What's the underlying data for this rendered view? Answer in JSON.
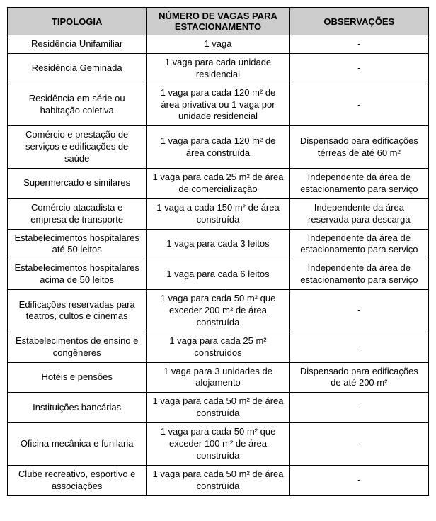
{
  "table": {
    "columns": [
      "TIPOLOGIA",
      "NÚMERO DE VAGAS PARA ESTACIONAMENTO",
      "OBSERVAÇÕES"
    ],
    "rows": [
      [
        "Residência Unifamiliar",
        "1 vaga",
        "-"
      ],
      [
        "Residência Geminada",
        "1 vaga para cada unidade residencial",
        "-"
      ],
      [
        "Residência em série ou habitação coletiva",
        "1 vaga para cada 120 m² de área privativa ou 1 vaga por unidade residencial",
        "-"
      ],
      [
        "Comércio e prestação de serviços e edificações de saúde",
        "1 vaga para cada 120 m² de área construída",
        "Dispensado para edificações térreas de até 60 m²"
      ],
      [
        "Supermercado e similares",
        "1 vaga para cada 25 m² de área de comercialização",
        "Independente da área de estacionamento para serviço"
      ],
      [
        "Comércio atacadista e empresa de transporte",
        "1 vaga a cada 150 m² de área construída",
        "Independente da área reservada para descarga"
      ],
      [
        "Estabelecimentos hospitalares até 50 leitos",
        "1 vaga para cada 3 leitos",
        "Independente da área de estacionamento para serviço"
      ],
      [
        "Estabelecimentos hospitalares acima de 50 leitos",
        "1 vaga para cada 6 leitos",
        "Independente da área de estacionamento para serviço"
      ],
      [
        "Edificações reservadas para teatros, cultos e cinemas",
        "1 vaga para cada 50 m² que exceder 200 m² de área construída",
        "-"
      ],
      [
        "Estabelecimentos de ensino e congêneres",
        "1 vaga para cada 25 m² construídos",
        "-"
      ],
      [
        "Hotéis e pensões",
        "1 vaga para 3 unidades de alojamento",
        "Dispensado para edificações de até 200 m²"
      ],
      [
        "Instituições bancárias",
        "1 vaga para cada 50 m² de área construída",
        "-"
      ],
      [
        "Oficina mecânica e funilaria",
        "1 vaga para cada 50 m² que exceder 100 m² de área construída",
        "-"
      ],
      [
        "Clube recreativo, esportivo e associações",
        "1 vaga para cada 50 m² de área construída",
        "-"
      ]
    ]
  }
}
